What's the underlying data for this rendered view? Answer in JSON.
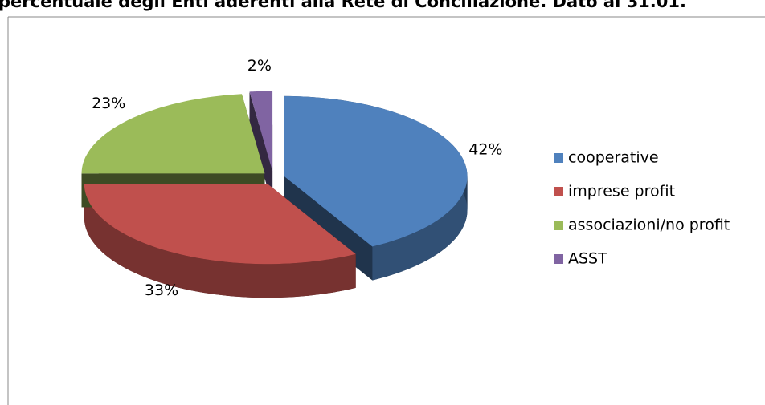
{
  "chart_data": {
    "type": "pie",
    "title": "percentuale degli Enti aderenti alla Rete di Conciliazione. Dato al 31.01.",
    "categories": [
      "cooperative",
      "imprese profit",
      "associazioni/no profit",
      "ASST"
    ],
    "values": [
      42,
      33,
      23,
      2
    ],
    "value_labels": [
      "42%",
      "33%",
      "23%",
      "2%"
    ],
    "colors": [
      "#4f81bd",
      "#c0504d",
      "#9bbb59",
      "#8064a2"
    ],
    "legend": "right"
  }
}
